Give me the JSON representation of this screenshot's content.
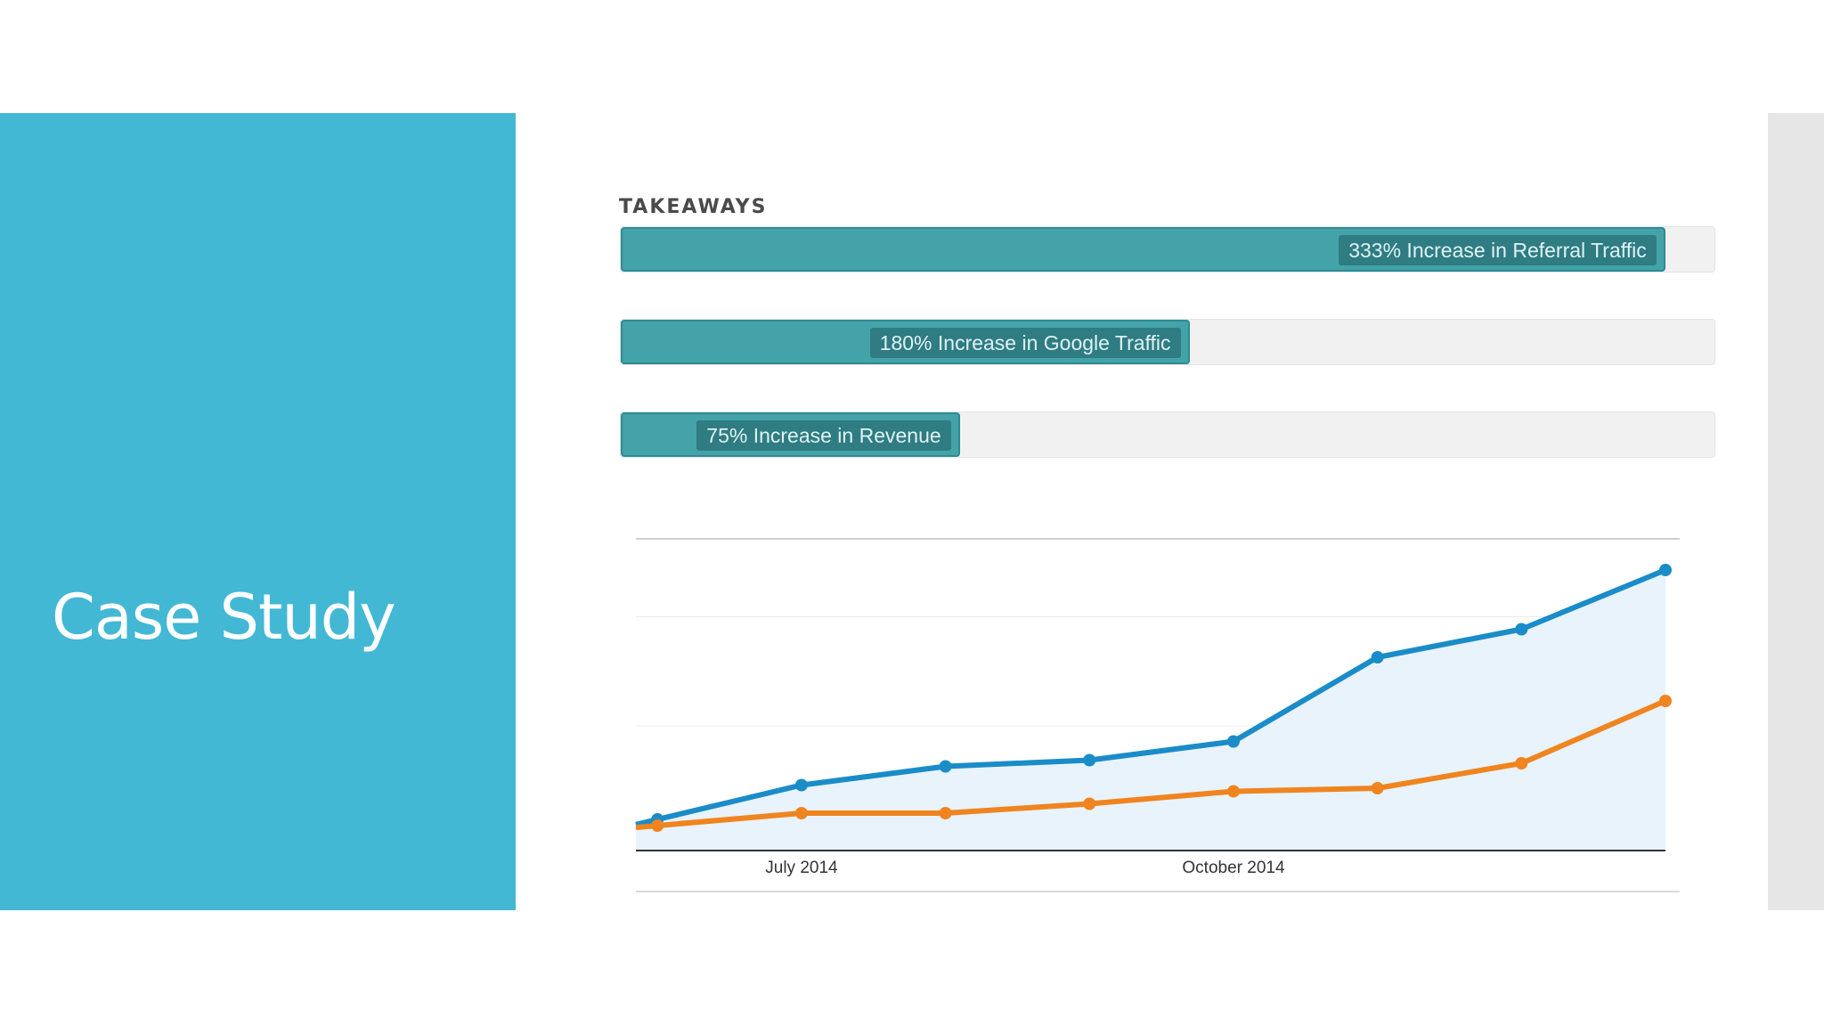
{
  "slide": {
    "title": "Case Study"
  },
  "takeaways": {
    "heading": "TAKEAWAYS",
    "items": [
      {
        "label": "333% Increase in Referral Traffic",
        "progress": 0.955
      },
      {
        "label": "180% Increase in Google Traffic",
        "progress": 0.52
      },
      {
        "label": "75% Increase in Revenue",
        "progress": 0.31
      }
    ]
  },
  "colors": {
    "panel": "#42b8d4",
    "bar_fill": "#43a3a9",
    "bar_label_bg": "#2f7c83",
    "series_blue": "#1a8cc8",
    "series_orange": "#f0841f",
    "area_fill": "#e8f3fb"
  },
  "chart_data": {
    "type": "line",
    "x": [
      0,
      1,
      2,
      3,
      4,
      5,
      6,
      7
    ],
    "x_tick_labels": [
      {
        "x": 1,
        "label": "July 2014"
      },
      {
        "x": 4,
        "label": "October 2014"
      }
    ],
    "series": [
      {
        "values": [
          10,
          21,
          27,
          29,
          35,
          62,
          71,
          90
        ]
      },
      {
        "values": [
          8,
          12,
          12,
          15,
          19,
          20,
          28,
          48
        ]
      }
    ],
    "xlim": [
      -0.15,
      7
    ],
    "ylim": [
      0,
      100
    ],
    "grid": true,
    "legend": "none"
  }
}
